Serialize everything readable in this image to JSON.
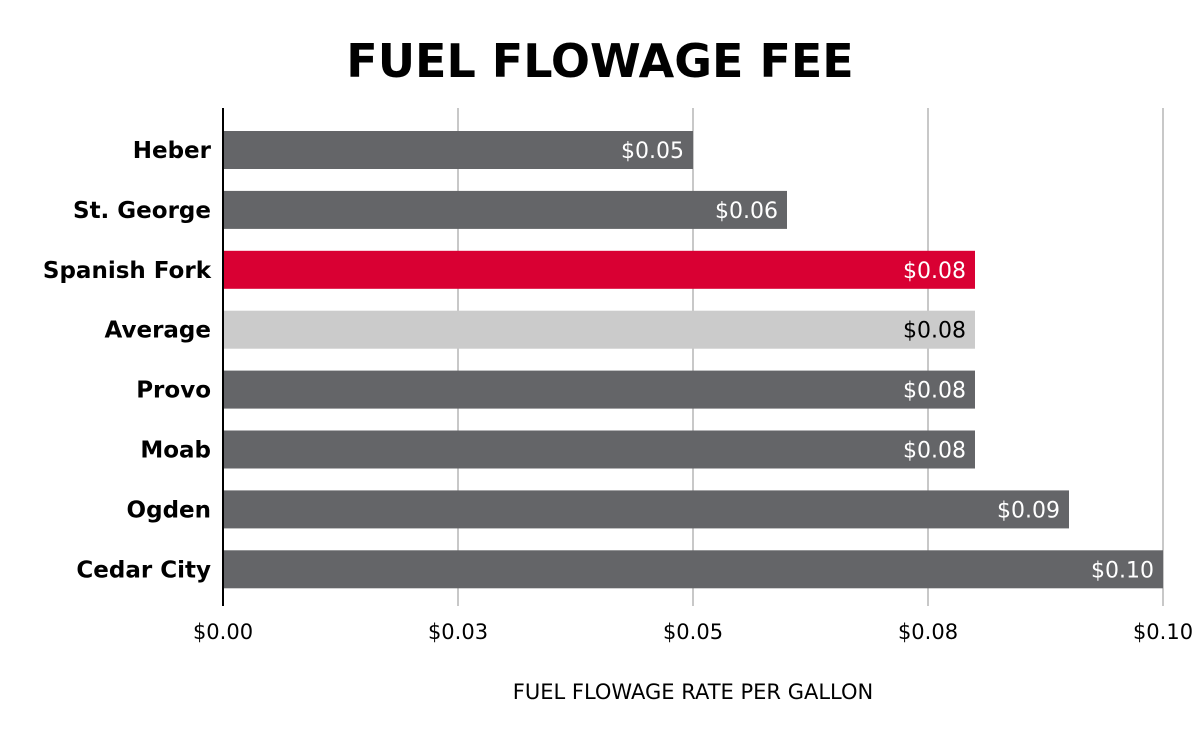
{
  "chart_data": {
    "type": "bar",
    "orientation": "horizontal",
    "title": "FUEL FLOWAGE FEE",
    "xlabel": "FUEL FLOWAGE RATE PER GALLON",
    "ylabel": "",
    "xlim": [
      0,
      0.1
    ],
    "grid": true,
    "legend": "none",
    "x_ticks": [
      {
        "value": 0.0,
        "label": "$0.00"
      },
      {
        "value": 0.025,
        "label": "$0.03"
      },
      {
        "value": 0.05,
        "label": "$0.05"
      },
      {
        "value": 0.075,
        "label": "$0.08"
      },
      {
        "value": 0.1,
        "label": "$0.10"
      }
    ],
    "bars": [
      {
        "category": "Heber",
        "value": 0.05,
        "label": "$0.05",
        "color": "#646568",
        "label_color": "#ffffff"
      },
      {
        "category": "St. George",
        "value": 0.06,
        "label": "$0.06",
        "color": "#646568",
        "label_color": "#ffffff"
      },
      {
        "category": "Spanish Fork",
        "value": 0.08,
        "label": "$0.08",
        "color": "#d90033",
        "label_color": "#ffffff"
      },
      {
        "category": "Average",
        "value": 0.08,
        "label": "$0.08",
        "color": "#cbcbcb",
        "label_color": "#000000"
      },
      {
        "category": "Provo",
        "value": 0.08,
        "label": "$0.08",
        "color": "#646568",
        "label_color": "#ffffff"
      },
      {
        "category": "Moab",
        "value": 0.08,
        "label": "$0.08",
        "color": "#646568",
        "label_color": "#ffffff"
      },
      {
        "category": "Ogden",
        "value": 0.09,
        "label": "$0.09",
        "color": "#646568",
        "label_color": "#ffffff"
      },
      {
        "category": "Cedar City",
        "value": 0.1,
        "label": "$0.10",
        "color": "#646568",
        "label_color": "#ffffff"
      }
    ]
  }
}
